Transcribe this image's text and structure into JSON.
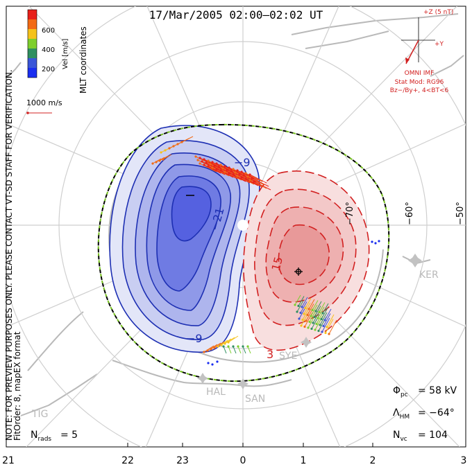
{
  "title": "17/Mar/2005 02:00–02:02 UT",
  "left_note_1": "NOTE: FOR PREVIEW PURPOSES ONLY. PLEASE CONTACT VT-SD STAFF FOR VERIFICATION.",
  "left_note_2": "FitOrder: 8, mapEX format",
  "coords_label": "MLT coordinates",
  "colorbar": {
    "label": "Vel [m/s]",
    "ticks": [
      "600",
      "400",
      "200"
    ],
    "colors": [
      "#e8201a",
      "#f26a14",
      "#f5c21b",
      "#7ecf2d",
      "#2f8f60",
      "#3a56d8",
      "#1a2ef0"
    ]
  },
  "vector_scale_label": "1000 m/s",
  "imf": {
    "z_label": "+Z (5 nT)",
    "y_label": "+Y",
    "source": "OMNI IMF",
    "model_line1": "Stat Mod: RG96",
    "model_line2": "Bz−/By+, 4<BT<6"
  },
  "lat_labels": [
    "−70°",
    "−60°",
    "−50°"
  ],
  "stations": [
    "KER",
    "SYE",
    "HAL",
    "SAN",
    "TIG"
  ],
  "contour_labels": {
    "neg1": "−9",
    "neg2": "−21",
    "neg3": "−9",
    "pos1": "15",
    "pos2": "3"
  },
  "stats": {
    "pcp_value": "= 58 kV",
    "hm_value": "= −64°",
    "nvc_value": "= 104",
    "nrads_value": "= 5"
  },
  "mlt_ticks": [
    "21",
    "22",
    "23",
    "0",
    "1",
    "2",
    "3"
  ],
  "colors": {
    "neg": "#1d2fb3",
    "pos": "#d22020",
    "land": "#b9b9b9",
    "grid": "#cfcfcf",
    "hm": "#76c11f"
  }
}
